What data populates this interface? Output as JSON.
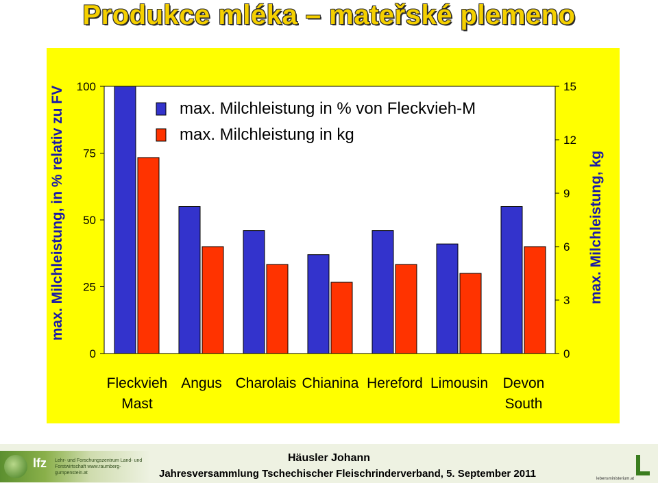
{
  "title": "Produkce mléka – mateřské plemeno",
  "footer": {
    "author": "Häusler Johann",
    "event": "Jahresversammlung Tschechischer Fleischrinderverband, 5. September 2011",
    "logo_left_short": "lfz",
    "logo_left_text": "Lehr- und Forschungszentrum Land- und Forstwirtschaft www.raumberg-gumpenstein.at",
    "logo_right_text": "lebensministerium.at",
    "logo_left_color": "#5b8f2f"
  },
  "chart_data": {
    "type": "bar",
    "categories": [
      [
        "Fleckvieh",
        "Mast"
      ],
      [
        "Angus"
      ],
      [
        "Charolais"
      ],
      [
        "Chianina"
      ],
      [
        "Hereford"
      ],
      [
        "Limousin"
      ],
      [
        "Devon",
        "South"
      ]
    ],
    "series": [
      {
        "name": "max. Milchleistung in % von Fleckvieh-M",
        "axis": "left",
        "color": "#3333cc",
        "values": [
          100,
          55,
          46,
          37,
          46,
          41,
          55
        ]
      },
      {
        "name": "max. Milchleistung in kg",
        "axis": "right",
        "color": "#ff3300",
        "values": [
          11,
          6,
          5,
          4,
          5,
          4.5,
          6
        ]
      }
    ],
    "ylabel_left": "max. Milchleistung, in % relativ zu FV",
    "ylabel_right": "max. Milchleistung, kg",
    "ylim_left": [
      0,
      100
    ],
    "ylim_right": [
      0,
      15
    ],
    "yticks_left": [
      "0",
      "25",
      "50",
      "75",
      "100"
    ],
    "yticks_right": [
      "0",
      "3",
      "6",
      "9",
      "12",
      "15"
    ],
    "legend_position": "top",
    "background": "#ffff00",
    "plot_background": "#ffffff",
    "grid": false
  }
}
